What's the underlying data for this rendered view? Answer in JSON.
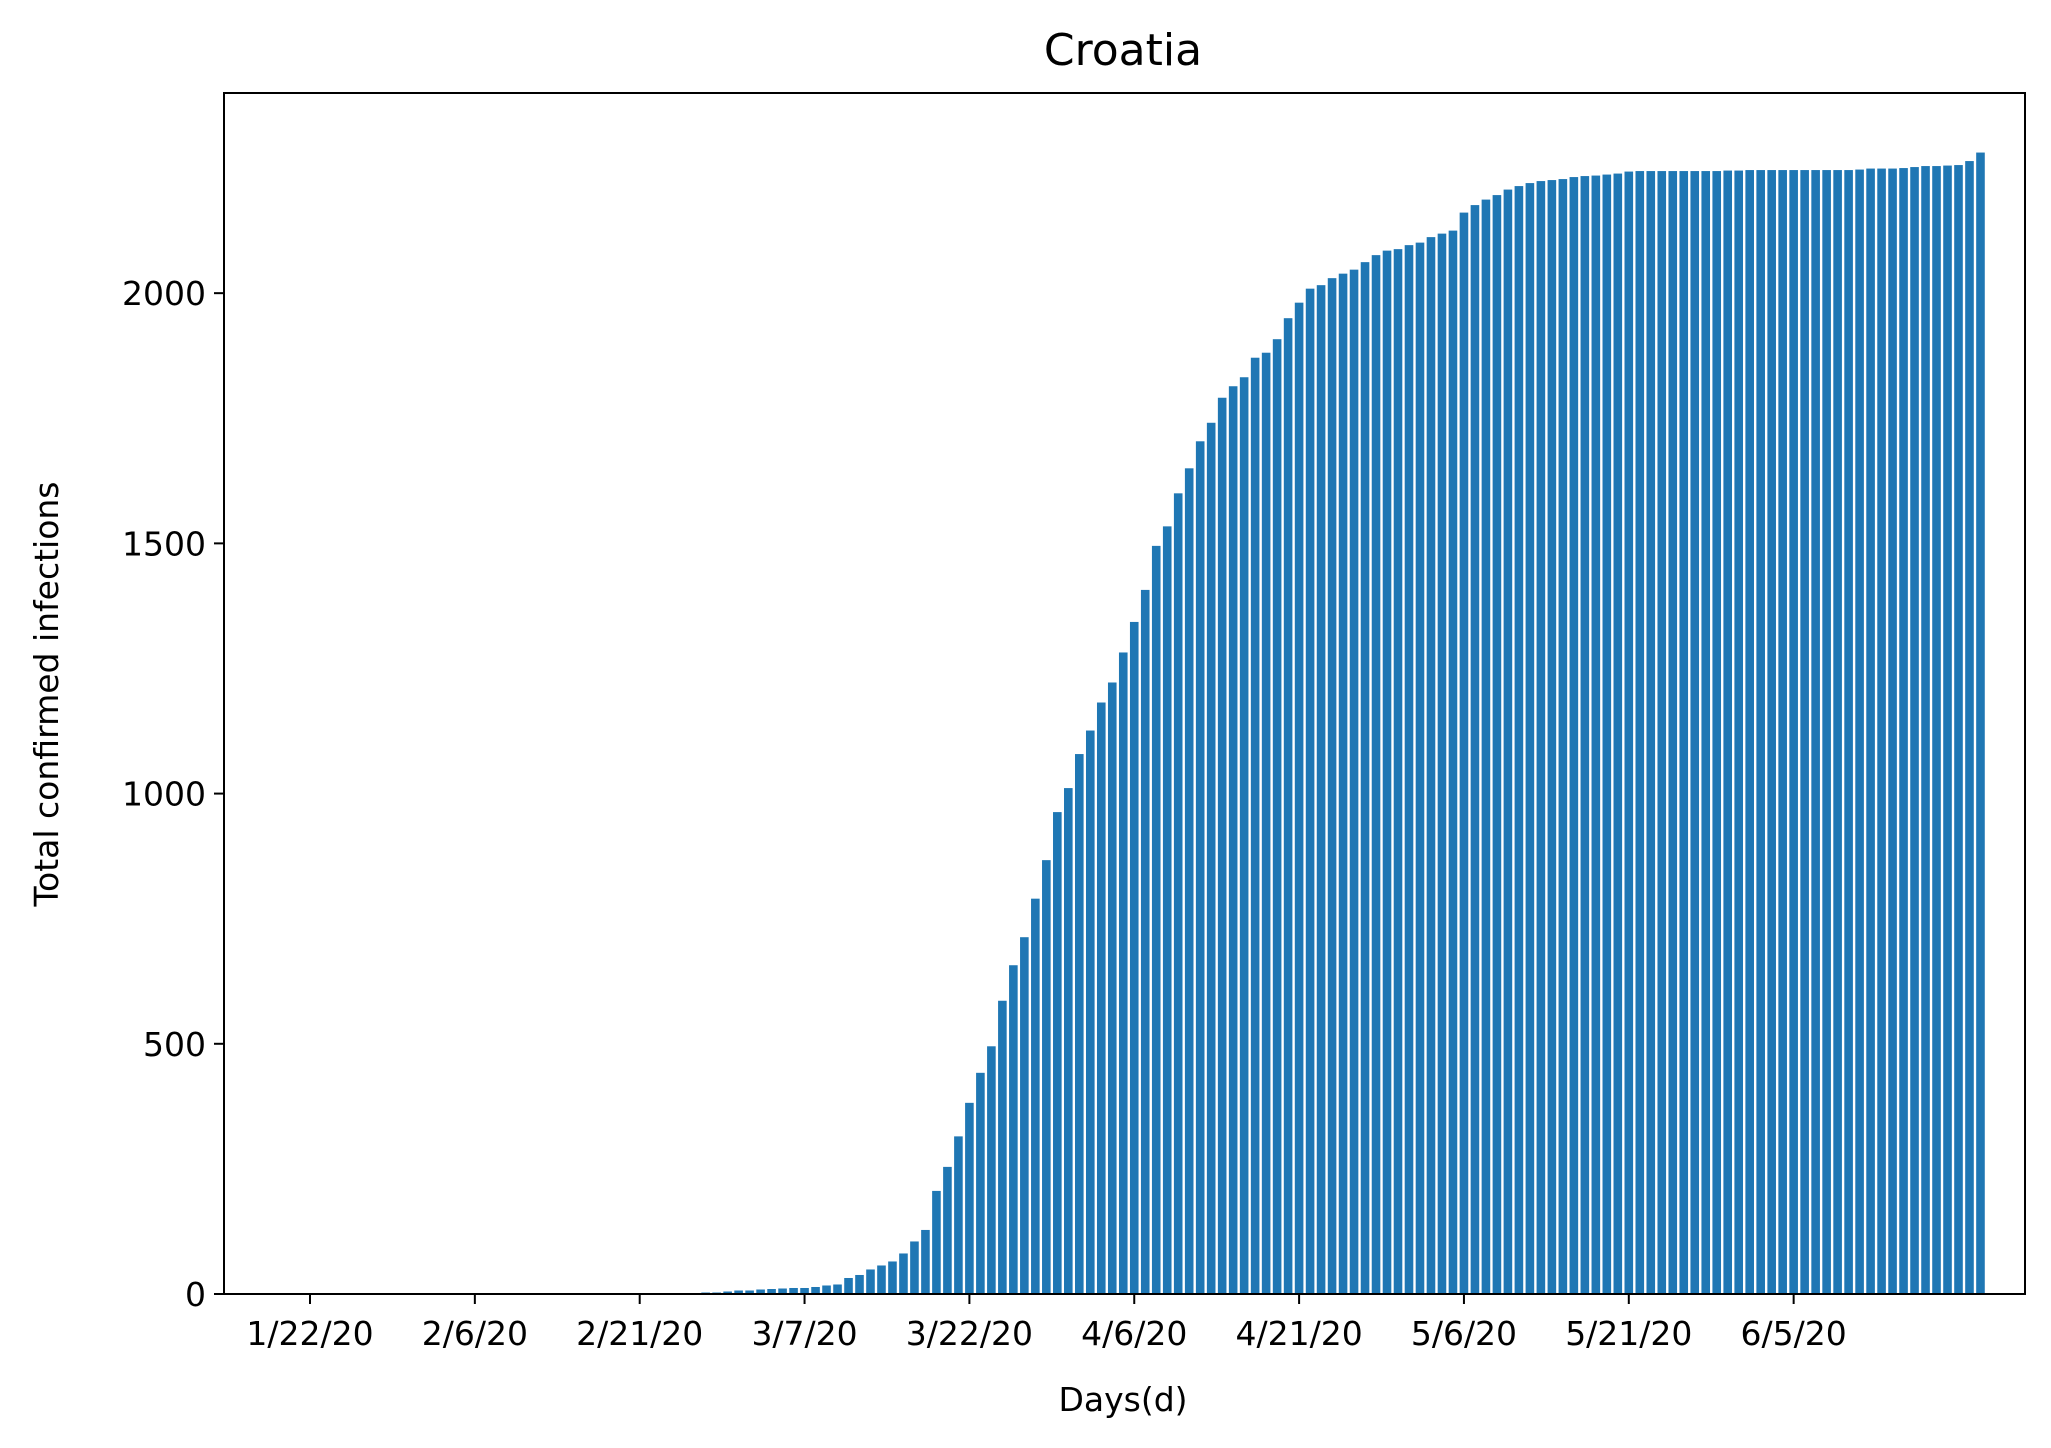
{
  "chart_data": {
    "type": "bar",
    "title": "Croatia",
    "xlabel": "Days(d)",
    "ylabel": "Total confirmed infections",
    "ylim": [
      0,
      2400
    ],
    "yticks": [
      0,
      500,
      1000,
      1500,
      2000
    ],
    "xtick_labels": [
      "1/22/20",
      "2/6/20",
      "2/21/20",
      "3/7/20",
      "3/22/20",
      "4/6/20",
      "4/21/20",
      "5/6/20",
      "5/21/20",
      "6/5/20"
    ],
    "xtick_indices": [
      0,
      15,
      30,
      45,
      60,
      75,
      90,
      105,
      120,
      135
    ],
    "bar_color": "#1f77b4",
    "start_date": "1/22/20",
    "values": [
      0,
      0,
      0,
      0,
      0,
      0,
      0,
      0,
      0,
      0,
      0,
      0,
      0,
      0,
      0,
      0,
      0,
      0,
      0,
      0,
      0,
      0,
      0,
      0,
      0,
      0,
      0,
      0,
      0,
      0,
      0,
      0,
      0,
      0,
      0,
      1,
      3,
      3,
      5,
      7,
      7,
      9,
      10,
      11,
      12,
      12,
      14,
      17,
      19,
      32,
      38,
      49,
      57,
      65,
      81,
      105,
      128,
      206,
      254,
      315,
      382,
      442,
      495,
      586,
      657,
      713,
      790,
      867,
      963,
      1011,
      1079,
      1126,
      1182,
      1222,
      1282,
      1343,
      1407,
      1495,
      1534,
      1600,
      1650,
      1704,
      1741,
      1791,
      1814,
      1832,
      1871,
      1881,
      1908,
      1950,
      1981,
      2009,
      2016,
      2030,
      2039,
      2047,
      2062,
      2076,
      2085,
      2088,
      2096,
      2101,
      2112,
      2119,
      2125,
      2161,
      2176,
      2187,
      2196,
      2207,
      2214,
      2220,
      2224,
      2226,
      2228,
      2232,
      2234,
      2235,
      2237,
      2239,
      2243,
      2244,
      2244,
      2244,
      2244,
      2244,
      2244,
      2244,
      2244,
      2245,
      2245,
      2246,
      2246,
      2246,
      2246,
      2246,
      2246,
      2246,
      2246,
      2246,
      2246,
      2247,
      2249,
      2249,
      2249,
      2250,
      2252,
      2254,
      2254,
      2255,
      2256,
      2264,
      2281
    ]
  }
}
